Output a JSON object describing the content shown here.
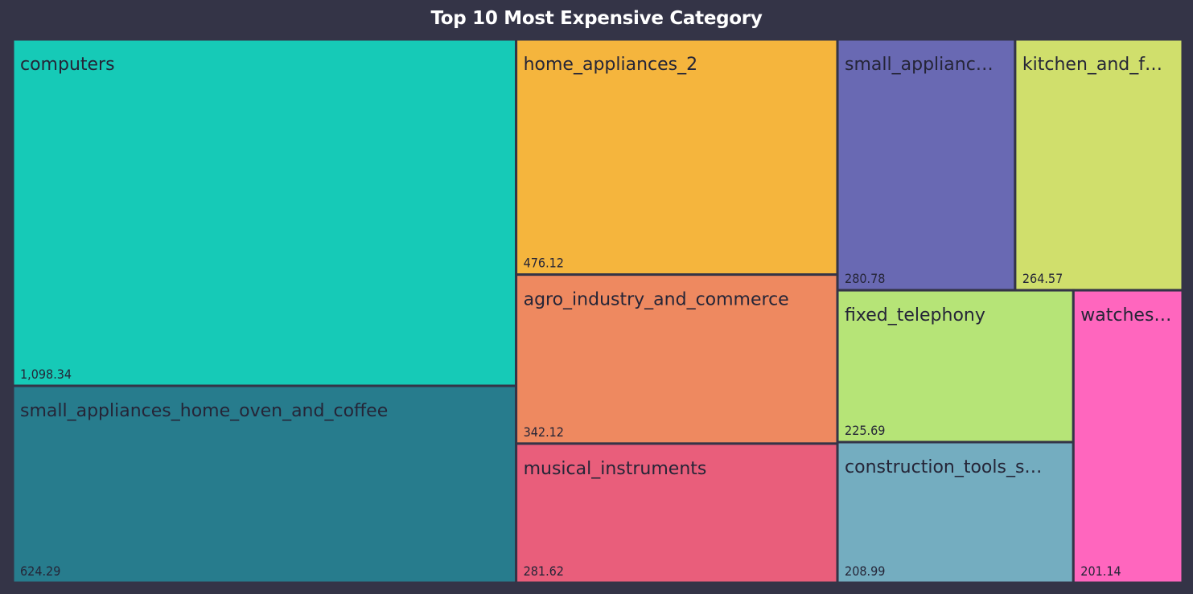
{
  "chart_data": {
    "type": "treemap",
    "title": "Top 10 Most Expensive Category",
    "categories": [
      "computers",
      "small_appliances_home_oven_and_coffee",
      "home_appliances_2",
      "agro_industry_and_commerce",
      "musical_instruments",
      "small_appliances",
      "kitchen_and_food_preparators",
      "fixed_telephony",
      "construction_tools_safety",
      "watches_gifts"
    ],
    "display_labels": [
      "computers",
      "small_appliances_home_oven_and_coffee",
      "home_appliances_2",
      "agro_industry_and_commerce",
      "musical_instruments",
      "small_applianc…",
      "kitchen_and_f…",
      "fixed_telephony",
      "construction_tools_s…",
      "watches…"
    ],
    "values": [
      1098.34,
      624.29,
      476.12,
      342.12,
      281.62,
      280.78,
      264.57,
      225.69,
      208.99,
      201.14
    ],
    "value_labels": [
      "1,098.34",
      "624.29",
      "476.12",
      "342.12",
      "281.62",
      "280.78",
      "264.57",
      "225.69",
      "208.99",
      "201.14"
    ],
    "colors": [
      "#16CAB7",
      "#277C8D",
      "#F5B53D",
      "#EE8960",
      "#E95E7B",
      "#6969B3",
      "#D0DF6C",
      "#B6E477",
      "#74ADC0",
      "#FF66BE"
    ],
    "background": "#343447"
  }
}
